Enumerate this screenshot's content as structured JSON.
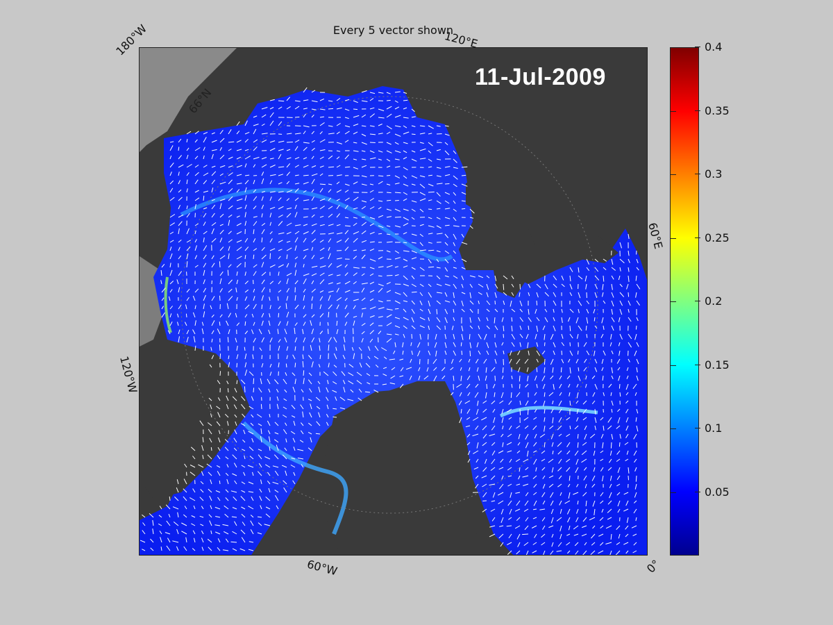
{
  "figure": {
    "title": "Every 5 vector shown",
    "date": "11-Jul-2009"
  },
  "map": {
    "projection": "north-polar-stereographic",
    "longitude_labels": {
      "top_left": "180°W",
      "top_right": "120°E",
      "right": "60°E",
      "left": "120°W",
      "bottom": "60°W",
      "bottom_right": "0°"
    },
    "latitude_label": "66°N",
    "colors": {
      "land": "#3a3a3a",
      "ice_land": "#8a8a8a",
      "ocean_low": "#0a1ef0",
      "vectors": "#ffffff"
    }
  },
  "colorbar": {
    "min": 0,
    "max": 0.4,
    "ticks": [
      "0.4",
      "0.35",
      "0.3",
      "0.25",
      "0.2",
      "0.15",
      "0.1",
      "0.05"
    ],
    "tick_values": [
      0.4,
      0.35,
      0.3,
      0.25,
      0.2,
      0.15,
      0.1,
      0.05
    ],
    "colormap": "jet"
  }
}
